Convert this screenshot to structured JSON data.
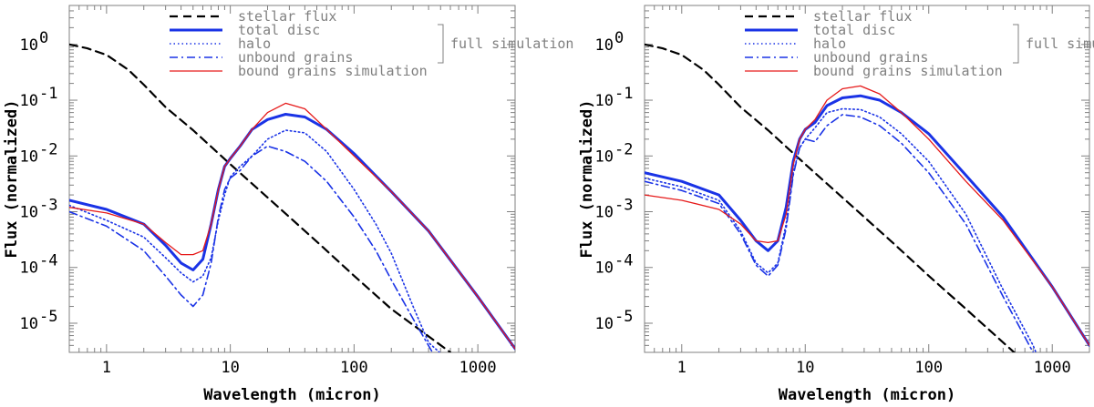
{
  "chart_data": [
    {
      "type": "line",
      "xlabel": "Wavelength (micron)",
      "ylabel": "Flux (normalized)",
      "xscale": "log",
      "yscale": "log",
      "xlim": [
        0.5,
        2000
      ],
      "ylim": [
        3e-06,
        5
      ],
      "xticks": [
        {
          "v": 1,
          "label": "1"
        },
        {
          "v": 10,
          "label": "10"
        },
        {
          "v": 100,
          "label": "100"
        },
        {
          "v": 1000,
          "label": "1000"
        }
      ],
      "yticks": [
        {
          "v": 1,
          "label": "10^0"
        },
        {
          "v": 0.1,
          "label": "10^-1"
        },
        {
          "v": 0.01,
          "label": "10^-2"
        },
        {
          "v": 0.001,
          "label": "10^-3"
        },
        {
          "v": 0.0001,
          "label": "10^-4"
        },
        {
          "v": 1e-05,
          "label": "10^-5"
        }
      ],
      "legend": {
        "position": "top-center",
        "bracket_label": "full simulation",
        "entries": [
          "stellar flux",
          "total disc",
          "halo",
          "unbound grains",
          "bound grains simulation"
        ]
      },
      "series": [
        {
          "name": "stellar flux",
          "color": "#000000",
          "style": "dashed",
          "x": [
            0.5,
            0.7,
            1,
            1.5,
            2,
            3,
            5,
            10,
            20,
            50,
            100,
            200,
            600
          ],
          "y": [
            1.0,
            0.85,
            0.65,
            0.35,
            0.19,
            0.075,
            0.029,
            0.0071,
            0.0018,
            0.00029,
            7.1e-05,
            1.8e-05,
            3e-06
          ]
        },
        {
          "name": "total disc",
          "color": "#1a33e6",
          "style": "solid-thick",
          "x": [
            0.5,
            1,
            2,
            3,
            4,
            5,
            6,
            7,
            8,
            9,
            10,
            12,
            15,
            20,
            28,
            40,
            60,
            100,
            200,
            400,
            1000,
            2000
          ],
          "y": [
            0.0016,
            0.0011,
            0.0006,
            0.00025,
            0.00012,
            9e-05,
            0.00014,
            0.0006,
            0.0025,
            0.0065,
            0.009,
            0.015,
            0.03,
            0.045,
            0.056,
            0.05,
            0.03,
            0.011,
            0.0023,
            0.00045,
            3e-05,
            3.5e-06
          ]
        },
        {
          "name": "halo",
          "color": "#1a33e6",
          "style": "dotted",
          "x": [
            0.5,
            1,
            2,
            3,
            4,
            5,
            6,
            7,
            8,
            9,
            10,
            12,
            15,
            20,
            28,
            40,
            60,
            100,
            150,
            200,
            300,
            400,
            600
          ],
          "y": [
            0.0013,
            0.0007,
            0.00035,
            0.00015,
            8e-05,
            5.5e-05,
            7e-05,
            0.00015,
            0.0007,
            0.002,
            0.0042,
            0.0065,
            0.01,
            0.02,
            0.029,
            0.026,
            0.012,
            0.0025,
            0.0006,
            0.00018,
            2e-05,
            4.5e-06,
            2e-06
          ]
        },
        {
          "name": "unbound grains",
          "color": "#1a33e6",
          "style": "dashdot",
          "x": [
            0.5,
            1,
            2,
            3,
            4,
            5,
            6,
            7,
            8,
            9,
            10,
            12,
            15,
            20,
            28,
            40,
            60,
            100,
            150,
            200,
            300,
            450
          ],
          "y": [
            0.001,
            0.00055,
            0.0002,
            7e-05,
            3.2e-05,
            2e-05,
            3.2e-05,
            0.00012,
            0.0008,
            0.0025,
            0.004,
            0.0055,
            0.01,
            0.015,
            0.012,
            0.008,
            0.0035,
            0.0008,
            0.0002,
            6e-05,
            1.2e-05,
            2.5e-06
          ]
        },
        {
          "name": "bound grains simulation",
          "color": "#e61a1a",
          "style": "solid-thin",
          "x": [
            0.5,
            1,
            2,
            3,
            4,
            5,
            6,
            7,
            8,
            9,
            10,
            12,
            15,
            20,
            28,
            40,
            60,
            100,
            200,
            400,
            1000,
            2000
          ],
          "y": [
            0.0012,
            0.00095,
            0.0006,
            0.00028,
            0.00017,
            0.00017,
            0.0002,
            0.0006,
            0.0025,
            0.0065,
            0.009,
            0.015,
            0.03,
            0.06,
            0.088,
            0.07,
            0.03,
            0.01,
            0.0023,
            0.00045,
            3e-05,
            3.5e-06
          ]
        }
      ]
    },
    {
      "type": "line",
      "xlabel": "Wavelength (micron)",
      "ylabel": "Flux (normalized)",
      "xscale": "log",
      "yscale": "log",
      "xlim": [
        0.5,
        2000
      ],
      "ylim": [
        3e-06,
        5
      ],
      "xticks": [
        {
          "v": 1,
          "label": "1"
        },
        {
          "v": 10,
          "label": "10"
        },
        {
          "v": 100,
          "label": "100"
        },
        {
          "v": 1000,
          "label": "1000"
        }
      ],
      "yticks": [
        {
          "v": 1,
          "label": "10^0"
        },
        {
          "v": 0.1,
          "label": "10^-1"
        },
        {
          "v": 0.01,
          "label": "10^-2"
        },
        {
          "v": 0.001,
          "label": "10^-3"
        },
        {
          "v": 0.0001,
          "label": "10^-4"
        },
        {
          "v": 1e-05,
          "label": "10^-5"
        }
      ],
      "legend": {
        "position": "top-center",
        "bracket_label": "full simulation",
        "entries": [
          "stellar flux",
          "total disc",
          "halo",
          "unbound grains",
          "bound grains simulation"
        ]
      },
      "series": [
        {
          "name": "stellar flux",
          "color": "#000000",
          "style": "dashed",
          "x": [
            0.5,
            0.7,
            1,
            1.5,
            2,
            3,
            5,
            10,
            20,
            50,
            100,
            200,
            500,
            1000
          ],
          "y": [
            1.0,
            0.85,
            0.65,
            0.35,
            0.19,
            0.075,
            0.029,
            0.0071,
            0.0018,
            0.00029,
            7.1e-05,
            1.8e-05,
            2.9e-06,
            7e-07
          ]
        },
        {
          "name": "total disc",
          "color": "#1a33e6",
          "style": "solid-thick",
          "x": [
            0.5,
            1,
            2,
            3,
            4,
            5,
            6,
            7,
            8,
            9,
            10,
            12,
            15,
            20,
            28,
            40,
            60,
            100,
            200,
            400,
            1000,
            2000
          ],
          "y": [
            0.005,
            0.0035,
            0.002,
            0.0007,
            0.0003,
            0.0002,
            0.0003,
            0.0012,
            0.008,
            0.02,
            0.03,
            0.04,
            0.08,
            0.11,
            0.12,
            0.1,
            0.06,
            0.025,
            0.0045,
            0.0008,
            4.5e-05,
            4e-06
          ]
        },
        {
          "name": "halo",
          "color": "#1a33e6",
          "style": "dotted",
          "x": [
            0.5,
            1,
            2,
            3,
            4,
            5,
            6,
            7,
            8,
            9,
            10,
            12,
            15,
            20,
            28,
            40,
            60,
            100,
            200,
            400,
            700,
            900
          ],
          "y": [
            0.004,
            0.0028,
            0.0016,
            0.00045,
            0.00012,
            8e-05,
            0.00012,
            0.0006,
            0.005,
            0.014,
            0.02,
            0.032,
            0.06,
            0.07,
            0.068,
            0.05,
            0.025,
            0.008,
            0.0009,
            4e-05,
            4e-06,
            1e-06
          ]
        },
        {
          "name": "unbound grains",
          "color": "#1a33e6",
          "style": "dashdot",
          "x": [
            0.5,
            1,
            2,
            3,
            4,
            5,
            6,
            7,
            8,
            9,
            10,
            12,
            15,
            20,
            28,
            40,
            60,
            100,
            200,
            400,
            700,
            900
          ],
          "y": [
            0.0035,
            0.0024,
            0.0014,
            0.0004,
            0.00011,
            7e-05,
            0.00011,
            0.0005,
            0.0045,
            0.014,
            0.02,
            0.018,
            0.035,
            0.055,
            0.05,
            0.035,
            0.017,
            0.005,
            0.0006,
            3e-05,
            3e-06,
            8e-07
          ]
        },
        {
          "name": "bound grains simulation",
          "color": "#e61a1a",
          "style": "solid-thin",
          "x": [
            0.5,
            1,
            2,
            3,
            4,
            5,
            6,
            7,
            8,
            9,
            10,
            12,
            15,
            20,
            28,
            40,
            60,
            100,
            200,
            400,
            1000,
            2000
          ],
          "y": [
            0.002,
            0.0016,
            0.0011,
            0.0006,
            0.0003,
            0.00028,
            0.0003,
            0.0009,
            0.007,
            0.02,
            0.03,
            0.045,
            0.1,
            0.16,
            0.18,
            0.13,
            0.06,
            0.02,
            0.0035,
            0.0007,
            4.5e-05,
            4e-06
          ]
        }
      ]
    }
  ]
}
